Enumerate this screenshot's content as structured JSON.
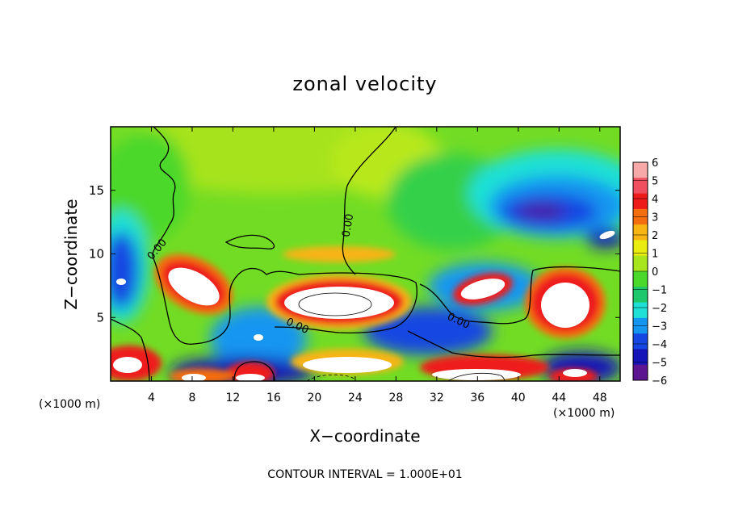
{
  "chart_data": {
    "type": "heatmap",
    "title": "zonal velocity",
    "xlabel": "X−coordinate",
    "ylabel": "Z−coordinate",
    "x_unit_left": "(×1000 m)",
    "x_unit_right": "(×1000 m)",
    "xlim": [
      0,
      50
    ],
    "ylim": [
      0,
      20
    ],
    "x_ticks": [
      4,
      8,
      12,
      16,
      20,
      24,
      28,
      32,
      36,
      40,
      44,
      48
    ],
    "x_tick_labels": [
      "4",
      "8",
      "12",
      "16",
      "20",
      "24",
      "28",
      "32",
      "36",
      "40",
      "44",
      "48"
    ],
    "y_ticks": [
      5,
      10,
      15
    ],
    "y_tick_labels": [
      "5",
      "10",
      "15"
    ],
    "colorbar": {
      "levels": [
        6,
        5,
        4,
        3,
        2,
        1,
        0,
        -1,
        -2,
        -3,
        -4,
        -5,
        -6
      ],
      "labels": [
        "6",
        "5",
        "4",
        "3",
        "2",
        "1",
        "0",
        "−1",
        "−2",
        "−3",
        "−4",
        "−5",
        "−6"
      ],
      "colors": [
        "#f7a8a8",
        "#ef4f5f",
        "#ee1b1b",
        "#f46d0f",
        "#f8b412",
        "#e8ec10",
        "#a8e51c",
        "#4cd82a",
        "#1ec76c",
        "#1ee0d6",
        "#1496f0",
        "#1646e2",
        "#1514b8",
        "#5c1490"
      ]
    },
    "contour_labels": [
      {
        "text": "0.00",
        "x": 4.8,
        "y": 10.2
      },
      {
        "text": "0.00",
        "x": 23.6,
        "y": 12.2
      },
      {
        "text": "0.00",
        "x": 18.2,
        "y": 4.1
      },
      {
        "text": "0.00",
        "x": 34.0,
        "y": 4.5
      }
    ],
    "footer": "CONTOUR INTERVAL = 1.000E+01"
  }
}
